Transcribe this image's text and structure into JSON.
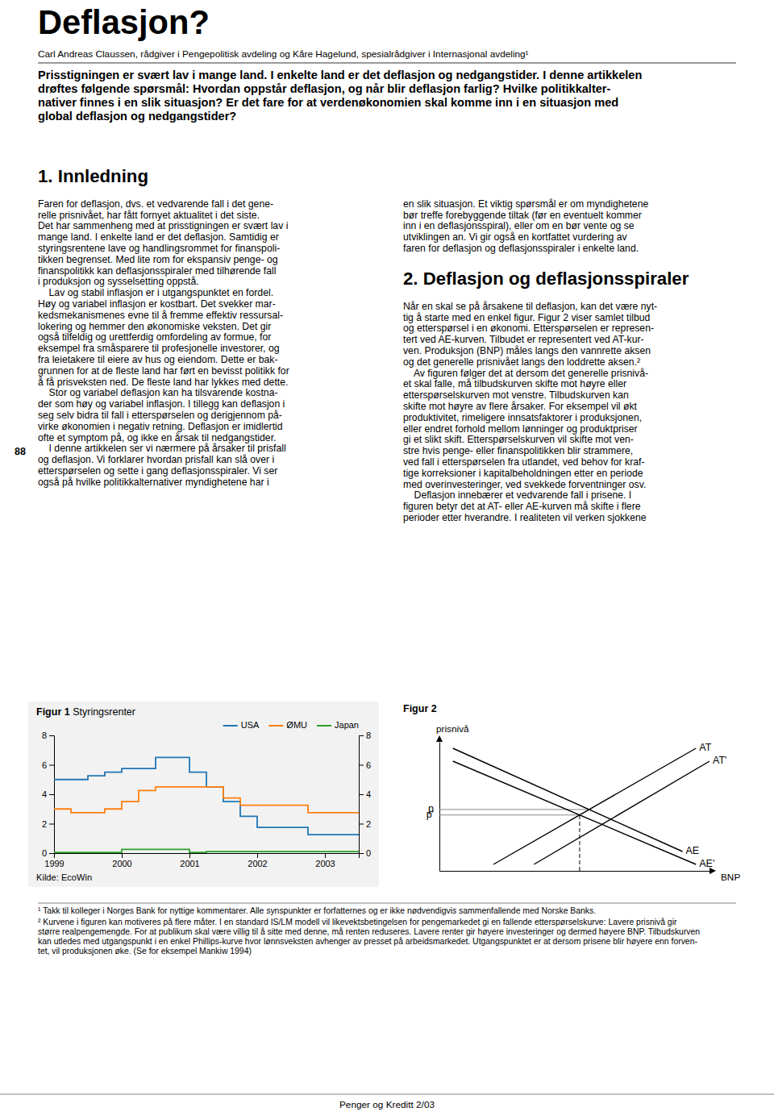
{
  "page": {
    "title": "Deflasjon?",
    "subtitle": "Carl Andreas Claussen, rådgiver i Pengepolitisk avdeling og Kåre Hagelund, spesialrådgiver i Internasjonal avdeling¹",
    "intro_lines": [
      "Prisstigningen er svært lav i mange land. I enkelte land er det deflasjon og nedgangstider. I denne artikkelen",
      "drøftes følgende spørsmål: Hvordan oppstår deflasjon, og når blir deflasjon farlig? Hvilke politikkalter-",
      "nativer finnes i en slik situasjon? Er det fare for at verdenøkonomien skal komme inn i en situasjon med",
      "global deflasjon og nedgangstider?"
    ],
    "page_number": "88",
    "section1_title": "1. Innledning",
    "left_col_lines": [
      "Faren for deflasjon, dvs. et vedvarende fall i det gene-",
      "relle prisnivået, har fått fornyet aktualitet i det siste.",
      "Det har sammenheng med at prisstigningen er svært lav i",
      "mange land. I enkelte land er det deflasjon. Samtidig er",
      "styringsrentene lave og handlingsrommet for finanspoli-",
      "tikken begrenset. Med lite rom for ekspansiv penge- og",
      "finanspolitikk kan deflasjonsspiraler med tilhørende fall",
      "i produksjon og sysselsetting oppstå.",
      "    Lav og stabil inflasjon er i utgangspunktet en fordel.",
      "Høy og variabel inflasjon er kostbart. Det svekker mar-",
      "kedsmekanismenes evne til å fremme effektiv ressursal-",
      "lokering og hemmer den økonomiske veksten. Det gir",
      "også tilfeldig og urettferdig omfordeling av formue, for",
      "eksempel fra småsparere til profesjonelle investorer, og",
      "fra leietakere til eiere av hus og eiendom. Dette er bak-",
      "grunnen for at de fleste land har ført en bevisst politikk for",
      "å få prisveksten ned. De fleste land har lykkes med dette.",
      "    Stor og variabel deflasjon kan ha tilsvarende kostna-",
      "der som høy og variabel inflasjon. I tillegg kan deflasjon i",
      "seg selv bidra til fall i etterspørselen og derigjennom på-",
      "virke økonomien i negativ retning. Deflasjon er imidlertid",
      "ofte et symptom på, og ikke en årsak til nedgangstider.",
      "    I denne artikkelen ser vi nærmere på årsaker til prisfall",
      "og deflasjon. Vi forklarer hvordan prisfall kan slå over i",
      "etterspørselen og sette i gang deflasjonsspiraler. Vi ser",
      "også på hvilke politikkalternativer myndighetene har i"
    ],
    "right_col_lines_p1": [
      "en slik situasjon. Et viktig spørsmål er om myndighetene",
      "bør treffe forebyggende tiltak (før en eventuelt kommer",
      "inn i en deflasjonsspiral), eller om en bør vente og se",
      "utviklingen an. Vi gir også en kortfattet vurdering av",
      "faren for deflasjon og deflasjonsspiraler i enkelte land."
    ],
    "section2_title": "2. Deflasjon og deflasjonsspiraler",
    "right_col_lines_p2": [
      "Når en skal se på årsakene til deflasjon, kan det være nyt-",
      "tig å starte med en enkel figur. Figur 2 viser samlet tilbud",
      "og etterspørsel i en økonomi. Etterspørselen er represen-",
      "tert ved AE-kurven. Tilbudet er representert ved AT-kur-",
      "ven. Produksjon (BNP) måles langs den vannrette aksen",
      "og det generelle prisnivået langs den loddrette aksen.²",
      "    Av figuren følger det at dersom det generelle prisnivå-",
      "et skal falle, må tilbudskurven skifte mot høyre eller",
      "etterspørselskurven mot venstre. Tilbudskurven kan",
      "skifte mot høyre av flere årsaker. For eksempel vil økt",
      "produktivitet, rimeligere innsatsfaktorer i produksjonen,",
      "eller endret forhold mellom lønninger og produktpriser",
      "gi et slikt skift. Etterspørselskurven vil skifte mot ven-",
      "stre hvis penge- eller finanspolitikken blir strammere,",
      "ved fall i etterspørselen fra utlandet, ved behov for kraf-",
      "tige korreksioner i kapitalbeholdningen etter en periode",
      "med overinvesteringer, ved svekkede forventninger osv.",
      "    Deflasjon innebærer et vedvarende fall i prisene. I",
      "figuren betyr det at AT- eller AE-kurven må skifte i flere",
      "perioder etter hverandre. I realiteten vil verken sjokkene"
    ],
    "footnote1": "¹ Takk til kolleger i Norges Bank for nyttige kommentarer. Alle synspunkter er forfatternes og er ikke nødvendigvis sammenfallende med Norske Banks.",
    "footnote2_lines": [
      "² Kurvene i figuren kan motiveres på flere måter. I en standard IS/LM modell vil likevektsbetingelsen for pengemarkedet gi en fallende etterspørselskurve: Lavere prisnivå gir",
      "større realpengemengde. For at publikum skal være villig til å sitte med denne, må renten reduseres. Lavere renter gir høyere investeringer og dermed høyere BNP. Tilbudskurven",
      "kan utledes med utgangspunkt i en enkel Phillips-kurve hvor lønnsveksten avhenger av presset på arbeidsmarkedet. Utgangspunktet er at dersom prisene blir høyere enn forven-",
      "tet, vil produksjonen øke. (Se for eksempel Mankiw 1994)"
    ],
    "journal_footer": "Penger og Kreditt 2/03"
  },
  "chart_data": [
    {
      "type": "step",
      "figure_label": "Figur 1",
      "title": "Styringsrenter",
      "source": "Kilde: EcoWin",
      "xlim": [
        1999,
        2003.5
      ],
      "xticks": [
        1999,
        2000,
        2001,
        2002,
        2003
      ],
      "ylim": [
        0,
        8
      ],
      "yticks": [
        0,
        2,
        4,
        6,
        8
      ],
      "y2lim": [
        0,
        8
      ],
      "y2ticks": [
        0,
        2,
        4,
        6,
        8
      ],
      "legend": "upper right",
      "series": [
        {
          "name": "USA",
          "x": [
            1999.0,
            1999.5,
            1999.75,
            2000.0,
            2000.5,
            2000.75,
            2001.0,
            2001.25,
            2001.5,
            2001.75,
            2002.0,
            2002.75,
            2003.0,
            2003.5
          ],
          "values": [
            5.0,
            5.25,
            5.5,
            5.75,
            6.5,
            6.5,
            5.5,
            4.5,
            3.5,
            2.5,
            1.75,
            1.25,
            1.25,
            1.25
          ]
        },
        {
          "name": "ØMU",
          "x": [
            1999.0,
            1999.25,
            1999.75,
            2000.0,
            2000.25,
            2000.5,
            2001.0,
            2001.5,
            2001.75,
            2002.0,
            2002.75,
            2003.5
          ],
          "values": [
            3.0,
            2.75,
            3.0,
            3.5,
            4.25,
            4.5,
            4.5,
            3.75,
            3.25,
            3.25,
            2.75,
            2.75
          ]
        },
        {
          "name": "Japan",
          "x": [
            1999.0,
            2000.0,
            2000.5,
            2001.0,
            2001.25,
            2003.5
          ],
          "values": [
            0.05,
            0.25,
            0.25,
            0.05,
            0.1,
            0.1
          ]
        }
      ]
    },
    {
      "type": "line",
      "figure_label": "Figur 2",
      "xlabel": "BNP",
      "ylabel": "prisnivå",
      "xlim": [
        0,
        10
      ],
      "ylim": [
        0,
        10
      ],
      "tick_labels": false,
      "series": [
        {
          "name": "AT",
          "x": [
            2.0,
            9.5
          ],
          "values": [
            0.5,
            9.5
          ]
        },
        {
          "name": "AT'",
          "x": [
            3.5,
            10.0
          ],
          "values": [
            0.5,
            8.5
          ]
        },
        {
          "name": "AE",
          "x": [
            0.5,
            9.0
          ],
          "values": [
            9.5,
            1.5
          ]
        },
        {
          "name": "AE'",
          "x": [
            0.5,
            9.5
          ],
          "values": [
            8.5,
            0.5
          ]
        }
      ],
      "reference_lines": [
        {
          "label": "p",
          "x": [
            0,
            5.545
          ],
          "values": [
            4.754,
            4.754
          ],
          "line_style": "solid"
        },
        {
          "label": "p'",
          "x": [
            0,
            5.192
          ],
          "values": [
            4.329,
            4.329
          ],
          "line_style": "solid"
        },
        {
          "x": [
            5.192,
            5.192
          ],
          "values": [
            0,
            4.329
          ],
          "line_style": "dashed"
        }
      ]
    }
  ]
}
